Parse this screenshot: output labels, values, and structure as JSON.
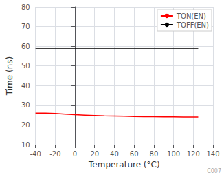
{
  "chart_data": {
    "type": "line",
    "xlabel": "Temperature (°C)",
    "ylabel": "Time (ns)",
    "x": [
      -40,
      -30,
      -20,
      -10,
      0,
      10,
      20,
      30,
      40,
      50,
      60,
      70,
      80,
      90,
      100,
      110,
      120,
      125
    ],
    "series": [
      {
        "name": "TON(EN)",
        "color": "#ff0000",
        "values": [
          26.0,
          26.0,
          25.8,
          25.5,
          25.2,
          25.0,
          24.8,
          24.6,
          24.5,
          24.4,
          24.3,
          24.2,
          24.2,
          24.1,
          24.1,
          24.0,
          24.0,
          24.0
        ]
      },
      {
        "name": "TOFF(EN)",
        "color": "#000000",
        "values": [
          59,
          59,
          59,
          59,
          59,
          59,
          59,
          59,
          59,
          59,
          59,
          59,
          59,
          59,
          59,
          59,
          59,
          59
        ]
      }
    ],
    "xlim": [
      -40,
      140
    ],
    "ylim": [
      10,
      80
    ],
    "xticks": [
      -40,
      -20,
      0,
      20,
      40,
      60,
      80,
      100,
      120,
      140
    ],
    "yticks": [
      10,
      20,
      30,
      40,
      50,
      60,
      70,
      80
    ],
    "grid": true,
    "legend": "upper right",
    "annotations": [
      "C007"
    ]
  }
}
